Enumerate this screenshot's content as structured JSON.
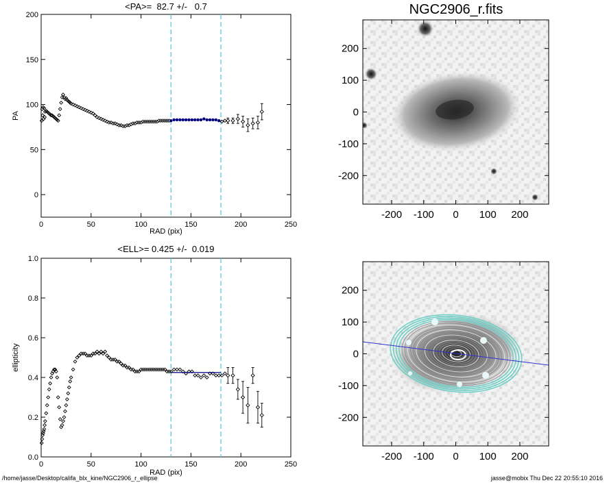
{
  "footer": {
    "path": "/home/jasse/Desktop/califa_blx_kine/NGC2906_r_ellipse",
    "signature": "jasse@mobix  Thu Dec 22 20:55:10 2016"
  },
  "image_top": {
    "title": "NGC2906_r.fits",
    "xticks": [
      "-200",
      "-100",
      "0",
      "100",
      "200"
    ],
    "yticks": [
      "200",
      "100",
      "0",
      "-100",
      "-200"
    ]
  },
  "image_bottom": {
    "title": "",
    "xticks": [
      "-200",
      "-100",
      "0",
      "100",
      "200"
    ],
    "yticks": [
      "200",
      "100",
      "0",
      "-100",
      "-200"
    ]
  },
  "chart_data": [
    {
      "type": "scatter",
      "title": "<PA>=  82.7 +/-   0.7",
      "xlabel": "RAD (pix)",
      "ylabel": "PA",
      "xlim": [
        0,
        250
      ],
      "ylim": [
        -25,
        200
      ],
      "xticks": [
        0,
        50,
        100,
        150,
        200,
        250
      ],
      "yticks": [
        0,
        50,
        100,
        150,
        200
      ],
      "vlines": [
        130,
        180
      ],
      "vline_color": "#5fc8d8",
      "fit_color": "#000080",
      "fit_range": [
        130,
        180
      ],
      "summary": {
        "mean": 82.7,
        "error": 0.7
      },
      "series": [
        {
          "x": [
            0.5,
            1,
            1.5,
            2,
            2.5,
            3,
            3.5,
            4,
            5,
            6,
            7,
            8,
            9,
            10,
            11,
            12,
            13,
            14,
            15,
            16,
            17,
            18,
            19,
            20,
            21,
            22,
            23,
            24,
            25,
            26,
            27,
            28,
            29,
            30,
            32,
            34,
            36,
            38,
            40,
            42,
            44,
            46,
            48,
            50,
            52,
            54,
            56,
            58,
            60,
            62,
            64,
            66,
            68,
            70,
            72,
            74,
            76,
            78,
            80,
            82,
            84,
            86,
            88,
            90,
            92,
            94,
            96,
            98,
            100,
            102,
            104,
            106,
            108,
            110,
            112,
            114,
            116,
            118,
            120,
            122,
            124,
            126,
            128,
            130,
            133,
            136,
            139,
            142,
            145,
            148,
            151,
            154,
            157,
            160,
            163,
            166,
            169,
            172,
            175,
            178,
            181,
            184
          ],
          "y": [
            82,
            95,
            88,
            97,
            84,
            96,
            86,
            92,
            93,
            92,
            91,
            90,
            89,
            88,
            88,
            87,
            86,
            85,
            84,
            83,
            82,
            88,
            95,
            102,
            108,
            111,
            108,
            106,
            107,
            105,
            104,
            103,
            102,
            101,
            100,
            99,
            98,
            97,
            96,
            95,
            94,
            93,
            92,
            91,
            90,
            88,
            86,
            85,
            84,
            83,
            82,
            81,
            80,
            80,
            79,
            79,
            78,
            77,
            77,
            76,
            76,
            77,
            77,
            78,
            79,
            79,
            80,
            80,
            80,
            81,
            81,
            81,
            81,
            81,
            81,
            81,
            81,
            82,
            82,
            82,
            82,
            82,
            82,
            82,
            83,
            83,
            83,
            83,
            83,
            83,
            83,
            83,
            83,
            83,
            84,
            83,
            83,
            83,
            83,
            82,
            81,
            82
          ]
        },
        {
          "x": [
            187,
            192,
            197,
            202,
            207,
            212,
            217,
            221
          ],
          "y": [
            82,
            82,
            84,
            81,
            77,
            79,
            80,
            92
          ],
          "err": [
            3,
            3,
            5,
            6,
            7,
            6,
            7,
            9
          ]
        }
      ]
    },
    {
      "type": "scatter",
      "title": "<ELL>= 0.425 +/-  0.019",
      "xlabel": "RAD (pix)",
      "ylabel": "ellipticity",
      "xlim": [
        0,
        250
      ],
      "ylim": [
        0,
        1
      ],
      "xticks": [
        0,
        50,
        100,
        150,
        200,
        250
      ],
      "yticks": [
        0.0,
        0.2,
        0.4,
        0.6,
        0.8,
        1.0
      ],
      "vlines": [
        130,
        180
      ],
      "vline_color": "#5fc8d8",
      "fit_color": "#000080",
      "fit_range": [
        130,
        180
      ],
      "summary": {
        "mean": 0.425,
        "error": 0.019
      },
      "series": [
        {
          "x": [
            0.5,
            1,
            1.5,
            2,
            2.5,
            3,
            3.5,
            4,
            5,
            6,
            7,
            8,
            9,
            10,
            11,
            12,
            13,
            14,
            15,
            16,
            17,
            18,
            19,
            20,
            21,
            22,
            23,
            24,
            25,
            26,
            27,
            28,
            29,
            30,
            32,
            34,
            36,
            38,
            40,
            42,
            44,
            46,
            48,
            50,
            52,
            54,
            56,
            58,
            60,
            62,
            64,
            66,
            68,
            70,
            72,
            74,
            76,
            78,
            80,
            82,
            84,
            86,
            88,
            90,
            92,
            94,
            96,
            98,
            100,
            102,
            104,
            106,
            108,
            110,
            112,
            114,
            116,
            118,
            120,
            122,
            124,
            126,
            128,
            130,
            133,
            136,
            139,
            142,
            145,
            148,
            151,
            154,
            157,
            160,
            163,
            166,
            169,
            172,
            175,
            178,
            181,
            184
          ],
          "y": [
            0.07,
            0.09,
            0.11,
            0.12,
            0.13,
            0.14,
            0.16,
            0.18,
            0.22,
            0.26,
            0.3,
            0.34,
            0.37,
            0.4,
            0.42,
            0.43,
            0.44,
            0.44,
            0.43,
            0.4,
            0.3,
            0.25,
            0.19,
            0.15,
            0.16,
            0.18,
            0.2,
            0.23,
            0.26,
            0.29,
            0.32,
            0.35,
            0.38,
            0.4,
            0.44,
            0.48,
            0.5,
            0.51,
            0.52,
            0.52,
            0.52,
            0.51,
            0.51,
            0.51,
            0.52,
            0.52,
            0.53,
            0.52,
            0.53,
            0.52,
            0.53,
            0.51,
            0.5,
            0.49,
            0.49,
            0.49,
            0.48,
            0.48,
            0.47,
            0.46,
            0.46,
            0.45,
            0.45,
            0.44,
            0.44,
            0.43,
            0.43,
            0.43,
            0.44,
            0.44,
            0.44,
            0.44,
            0.44,
            0.44,
            0.44,
            0.44,
            0.44,
            0.44,
            0.44,
            0.44,
            0.44,
            0.43,
            0.43,
            0.43,
            0.44,
            0.44,
            0.44,
            0.43,
            0.42,
            0.43,
            0.43,
            0.41,
            0.41,
            0.4,
            0.41,
            0.4,
            0.42,
            0.42,
            0.41,
            0.41,
            0.41,
            0.42
          ],
          "pad": 0
        },
        {
          "x": [
            187,
            192,
            197,
            202,
            207,
            212,
            217,
            221
          ],
          "y": [
            0.41,
            0.41,
            0.34,
            0.3,
            0.26,
            0.41,
            0.25,
            0.21
          ],
          "err": [
            0.04,
            0.04,
            0.05,
            0.08,
            0.09,
            0.04,
            0.08,
            0.06
          ]
        }
      ]
    }
  ]
}
